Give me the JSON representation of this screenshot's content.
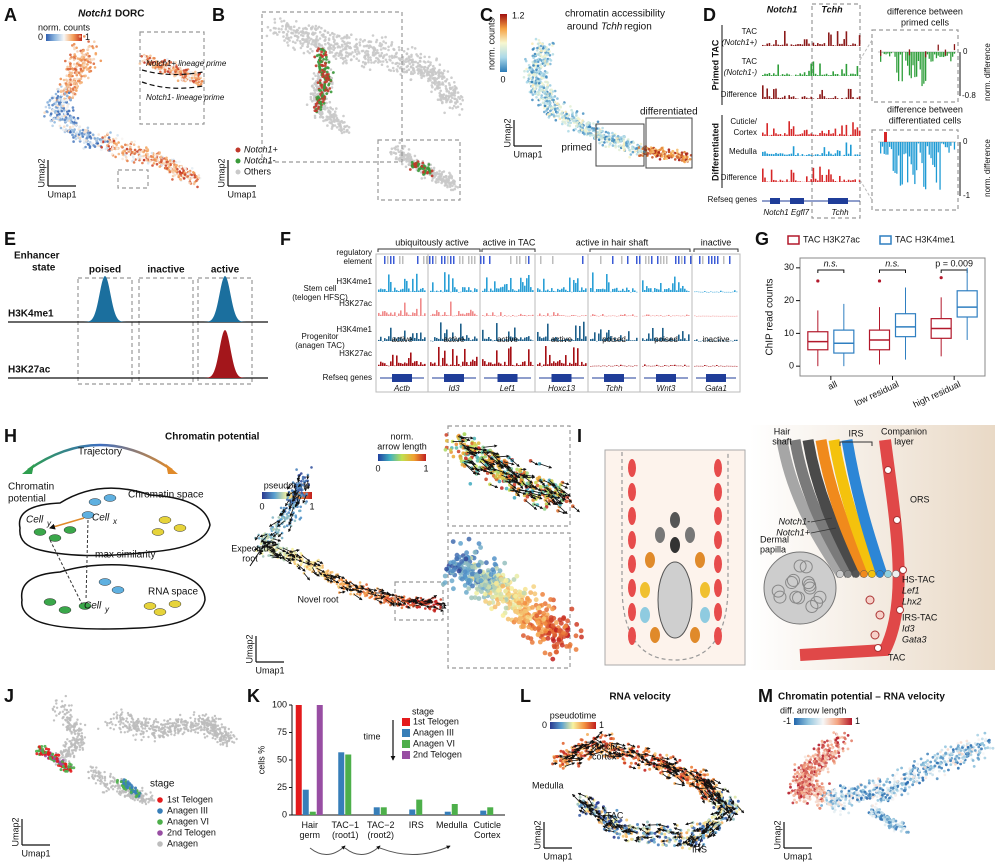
{
  "panels": {
    "A": {
      "letter": "A",
      "title": [
        "Notch1",
        "DORC"
      ],
      "colorbar": {
        "title": "norm. counts",
        "min": 0,
        "max": 1
      },
      "annotations": [
        "Notch1+ lineage prime",
        "Notch1- lineage prime"
      ],
      "axes": [
        "Umap2",
        "Umap1"
      ]
    },
    "B": {
      "letter": "B",
      "legend": [
        "Notch1+",
        "Notch1-",
        "Others"
      ],
      "axes": [
        "Umap2",
        "Umap1"
      ]
    },
    "C": {
      "letter": "C",
      "title": [
        "chromatin accessibility",
        "around",
        "Tchh",
        "region"
      ],
      "colorbar": {
        "title": "norm. counts",
        "min": 0,
        "max": 1.2
      },
      "labels": [
        "primed",
        "differentiated"
      ],
      "axes": [
        "Umap2",
        "Umap1"
      ]
    },
    "D": {
      "letter": "D",
      "columns": [
        "Notch1",
        "Tchh"
      ],
      "groups": [
        "Primed TAC",
        "Differentiated"
      ],
      "tracks": [
        [
          "TAC",
          "(Notch1+)"
        ],
        [
          "TAC",
          "(Notch1-)"
        ],
        [
          "Difference"
        ],
        [
          "Cuticle/",
          "Cortex"
        ],
        [
          "Medulla"
        ],
        [
          "Difference"
        ]
      ],
      "refseq": "Refseq genes",
      "genes": [
        "Notch1",
        "Egfl7",
        "Tchh"
      ],
      "zoom_titles": [
        [
          "difference between",
          "primed cells"
        ],
        [
          "difference between",
          "differentiated cells"
        ]
      ],
      "zoom_axis": [
        "norm. difference",
        "norm. difference"
      ],
      "zoom_ticks": [
        0,
        -0.8,
        0,
        -1
      ]
    },
    "E": {
      "letter": "E",
      "title": [
        "Enhancer",
        "state"
      ],
      "states": [
        "poised",
        "inactive",
        "active"
      ],
      "marks": [
        "H3K4me1",
        "H3K27ac"
      ]
    },
    "F": {
      "letter": "F",
      "regulatory": [
        "regulatory",
        "element"
      ],
      "groups": [
        "ubiquitously active",
        "active in TAC",
        "active in hair shaft",
        "inactive"
      ],
      "samples": [
        [
          "Stem cell",
          "(telogen HFSC)"
        ],
        [
          "Progenitor",
          "(anagen TAC)"
        ]
      ],
      "marks": [
        "H3K4me1",
        "H3K27ac",
        "H3K4me1",
        "H3K27ac"
      ],
      "states": [
        "active",
        "active",
        "active",
        "active",
        "poised",
        "poised",
        "inactive"
      ],
      "refseq": "Refseq genes",
      "genes": [
        "Actb",
        "Id3",
        "Lef1",
        "Hoxc13",
        "Tchh",
        "Wnt3",
        "Gata1"
      ]
    },
    "G": {
      "letter": "G"
    },
    "H": {
      "letter": "H",
      "title": "Chromatin potential",
      "trajectory": "Trajectory",
      "potential": [
        "Chromatin",
        "potential"
      ],
      "chromatin_space": "Chromatin space",
      "cell_x": [
        "Cell",
        "x"
      ],
      "cell_y": [
        "Cell",
        "y"
      ],
      "cell_y2": [
        "Cell",
        "y"
      ],
      "max_similarity": "max similarity",
      "rna_space": "RNA space",
      "pseudotime": {
        "title": "pseudotime",
        "min": 0,
        "max": 1
      },
      "arrow_length": {
        "title": [
          "norm.",
          "arrow length"
        ],
        "min": 0,
        "max": 1
      },
      "roots": [
        [
          "Expected",
          "root"
        ],
        [
          "Novel root"
        ]
      ],
      "axes": [
        "Umap2",
        "Umap1"
      ]
    },
    "I": {
      "letter": "I",
      "hair_shaft": [
        "Hair",
        "shaft"
      ],
      "irs": "IRS",
      "companion": [
        "Companion",
        "layer"
      ],
      "ors": "ORS",
      "notch": [
        "Notch1-",
        "Notch1+"
      ],
      "papilla": [
        "Dermal",
        "papilla"
      ],
      "hs_tac": [
        "HS-TAC",
        "Lef1",
        "Lhx2"
      ],
      "irs_tac": [
        "IRS-TAC",
        "Id3",
        "Gata3"
      ],
      "tac": "TAC"
    },
    "J": {
      "letter": "J",
      "legend_title": "stage",
      "stages": [
        "1st Telogen",
        "Anagen III",
        "Anagen VI",
        "2nd Telogen",
        "Anagen"
      ],
      "colors": [
        "#e41a1c",
        "#377eb8",
        "#4daf4a",
        "#984ea3",
        "#bdbdbd"
      ],
      "axes": [
        "Umap2",
        "Umap1"
      ]
    },
    "K": {
      "letter": "K"
    },
    "L": {
      "letter": "L",
      "title": "RNA velocity",
      "pseudotime": {
        "title": "pseudotime",
        "min": 0,
        "max": 1
      },
      "labels": [
        [
          "cuticle",
          "cortex"
        ],
        [
          "Medulla"
        ],
        [
          "TAC"
        ],
        [
          "IRS"
        ]
      ],
      "axes": [
        "Umap2",
        "Umap1"
      ]
    },
    "M": {
      "letter": "M",
      "title": "Chromatin potential – RNA velocity",
      "colorbar": {
        "title": "diff. arrow length",
        "min": -1,
        "max": 1
      },
      "axes": [
        "Umap2",
        "Umap1"
      ]
    }
  },
  "chart_data": [
    {
      "type": "box",
      "ylabel": "ChIP read counts",
      "categories": [
        "all",
        "low residual",
        "high residual"
      ],
      "ylim": [
        -3,
        33
      ],
      "yticks": [
        0,
        10,
        20,
        30
      ],
      "annotations": [
        "n.s.",
        "n.s.",
        "p = 0.009"
      ],
      "series": [
        {
          "name": "TAC H3K27ac",
          "color": "#b2182b",
          "whisker_low": [
            0,
            0.5,
            3
          ],
          "q1": [
            5,
            5,
            8.5
          ],
          "median": [
            7.5,
            8,
            11.5
          ],
          "q3": [
            10.5,
            11,
            14.5
          ],
          "whisker_high": [
            17,
            18,
            21
          ],
          "outliers": [
            [
              26
            ],
            [
              26
            ],
            [
              27
            ]
          ]
        },
        {
          "name": "TAC H3K4me1",
          "color": "#2f7fc1",
          "whisker_low": [
            0,
            2,
            8
          ],
          "q1": [
            4,
            9,
            15
          ],
          "median": [
            7,
            12,
            18
          ],
          "q3": [
            11,
            16,
            23
          ],
          "whisker_high": [
            19,
            24,
            30
          ],
          "outliers": [
            [],
            [],
            []
          ]
        }
      ]
    },
    {
      "type": "bar",
      "ylabel": "cells %",
      "categories": [
        "Hair germ",
        "TAC−1 (root1)",
        "TAC−2 (root2)",
        "IRS",
        "Medulla",
        "Cuticle Cortex"
      ],
      "ylim": [
        0,
        100
      ],
      "yticks": [
        0,
        25,
        50,
        75,
        100
      ],
      "legend_title": "stage",
      "note": "time",
      "series": [
        {
          "name": "1st Telogen",
          "color": "#e41a1c",
          "values": [
            100,
            0,
            0,
            0,
            0,
            0
          ]
        },
        {
          "name": "Anagen III",
          "color": "#377eb8",
          "values": [
            23,
            57,
            7,
            5,
            3,
            4
          ]
        },
        {
          "name": "Anagen VI",
          "color": "#4daf4a",
          "values": [
            3,
            55,
            7,
            14,
            10,
            7
          ]
        },
        {
          "name": "2nd Telogen",
          "color": "#984ea3",
          "values": [
            100,
            0,
            0,
            0,
            0,
            0
          ]
        }
      ]
    }
  ]
}
